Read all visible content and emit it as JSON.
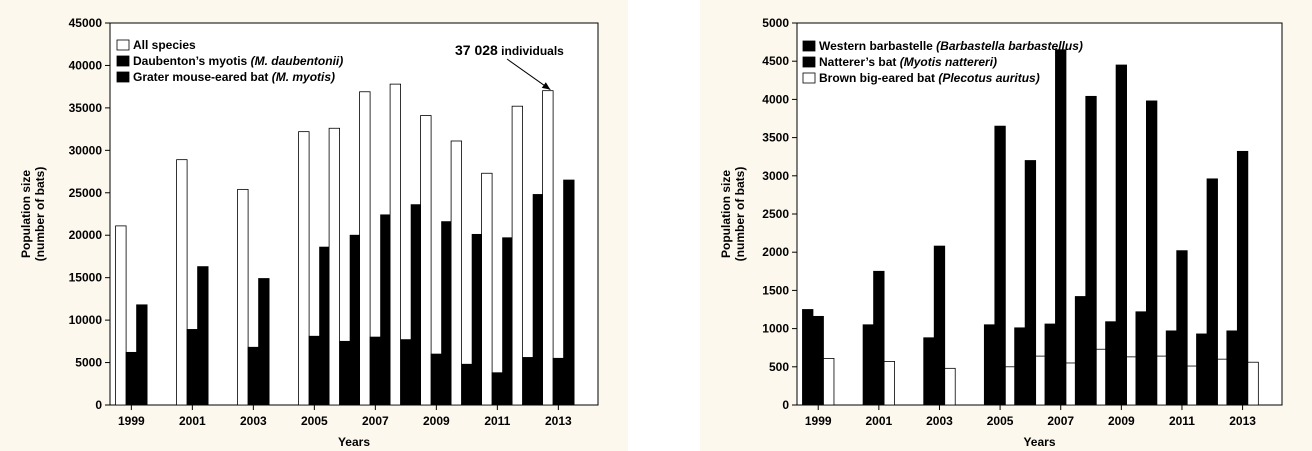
{
  "chart_data": [
    {
      "type": "bar",
      "xlabel": "Years",
      "ylabel": "Population size",
      "ylabel_line2": "(number of bats)",
      "ylim": [
        0,
        45000
      ],
      "yticks": [
        0,
        5000,
        10000,
        15000,
        20000,
        25000,
        30000,
        35000,
        40000,
        45000
      ],
      "xlim": [
        1998.3,
        2014.3
      ],
      "xtick_labels": [
        "1999",
        "2001",
        "2003",
        "2005",
        "2007",
        "2009",
        "2011",
        "2013"
      ],
      "categories": [
        1999,
        2001,
        2003,
        2005,
        2006,
        2007,
        2008,
        2009,
        2010,
        2011,
        2012,
        2013
      ],
      "legend_position": "top-left",
      "series": [
        {
          "name": "All species",
          "fill": "#ffffff",
          "values": [
            21100,
            28900,
            25400,
            32200,
            32600,
            36900,
            37800,
            34100,
            31100,
            27300,
            35200,
            37028
          ]
        },
        {
          "name_parts": [
            "Daubenton’s myotis ",
            "(M. daubentonii)"
          ],
          "fill": "#000000",
          "values": [
            6200,
            8900,
            6800,
            8100,
            7500,
            8000,
            7700,
            6000,
            4800,
            3800,
            5600,
            5500
          ]
        },
        {
          "name_parts": [
            "Grater mouse-eared bat ",
            "(M. myotis)"
          ],
          "fill": "#000000",
          "values": [
            11800,
            16300,
            14900,
            18600,
            20000,
            22400,
            23600,
            21600,
            20100,
            19700,
            24800,
            26500
          ]
        }
      ],
      "annotation": {
        "number": "37 028",
        "text": " individuals",
        "year": 2013,
        "value": 37028
      }
    },
    {
      "type": "bar",
      "xlabel": "Years",
      "ylabel": "Population size",
      "ylabel_line2": "(number of bats)",
      "ylim": [
        0,
        5000
      ],
      "yticks": [
        0,
        500,
        1000,
        1500,
        2000,
        2500,
        3000,
        3500,
        4000,
        4500,
        5000
      ],
      "xlim": [
        1998.3,
        2014.3
      ],
      "xtick_labels": [
        "1999",
        "2001",
        "2003",
        "2005",
        "2007",
        "2009",
        "2011",
        "2013"
      ],
      "categories": [
        1999,
        2001,
        2003,
        2005,
        2006,
        2007,
        2008,
        2009,
        2010,
        2011,
        2012,
        2013
      ],
      "legend_position": "top-left",
      "series": [
        {
          "name_parts": [
            "Western barbastelle ",
            "(Barbastella barbastellus)"
          ],
          "fill": "#000000",
          "values": [
            1250,
            1050,
            880,
            1050,
            1010,
            1060,
            1420,
            1090,
            1220,
            970,
            930,
            970
          ]
        },
        {
          "name_parts": [
            "Natterer’s bat ",
            "(Myotis nattereri)"
          ],
          "fill": "#000000",
          "values": [
            1160,
            1750,
            2080,
            3650,
            3200,
            4650,
            4040,
            4450,
            3980,
            2020,
            2960,
            3320
          ]
        },
        {
          "name_parts": [
            "Brown big-eared bat ",
            "(Plecotus auritus)"
          ],
          "fill": "#ffffff",
          "values": [
            610,
            570,
            480,
            500,
            640,
            550,
            730,
            630,
            640,
            510,
            600,
            560
          ]
        }
      ]
    }
  ]
}
